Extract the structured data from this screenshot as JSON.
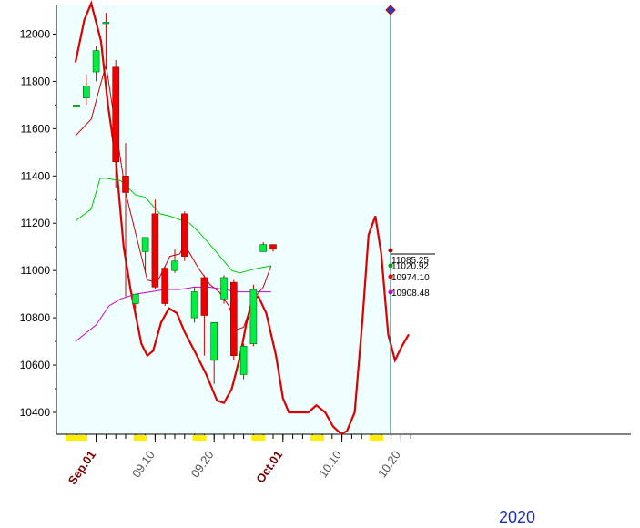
{
  "chart_data": {
    "type": "candlestick",
    "year_label": "2020",
    "yticks": [
      10400,
      10600,
      10800,
      11000,
      11200,
      11400,
      11600,
      11800,
      12000
    ],
    "ylim": [
      10300,
      12130
    ],
    "xticks": [
      {
        "label": "Sep.01",
        "i": 2,
        "month": true
      },
      {
        "label": "09.10",
        "i": 8,
        "month": false
      },
      {
        "label": "09.20",
        "i": 14,
        "month": false
      },
      {
        "label": "Oct.01",
        "i": 21,
        "month": true
      },
      {
        "label": "10.10",
        "i": 27,
        "month": false
      },
      {
        "label": "10.20",
        "i": 33,
        "month": false
      }
    ],
    "candles": [
      {
        "i": 0,
        "o": 11700,
        "h": 11700,
        "l": 11700,
        "c": 11700
      },
      {
        "i": 1,
        "o": 11730,
        "h": 11830,
        "l": 11700,
        "c": 11780
      },
      {
        "i": 2,
        "o": 11840,
        "h": 11950,
        "l": 11800,
        "c": 11930
      },
      {
        "i": 3,
        "o": 12050,
        "h": 12090,
        "l": 11850,
        "c": 12050
      },
      {
        "i": 4,
        "o": 11860,
        "h": 11890,
        "l": 11350,
        "c": 11460
      },
      {
        "i": 5,
        "o": 11400,
        "h": 11540,
        "l": 10890,
        "c": 11330
      },
      {
        "i": 6,
        "o": 10860,
        "h": 10900,
        "l": 10840,
        "c": 10900
      },
      {
        "i": 7,
        "o": 11080,
        "h": 11140,
        "l": 10990,
        "c": 11140
      },
      {
        "i": 8,
        "o": 11240,
        "h": 11300,
        "l": 10920,
        "c": 10930
      },
      {
        "i": 9,
        "o": 11010,
        "h": 11020,
        "l": 10850,
        "c": 10860
      },
      {
        "i": 10,
        "o": 11000,
        "h": 11090,
        "l": 10990,
        "c": 11040
      },
      {
        "i": 11,
        "o": 11240,
        "h": 11250,
        "l": 11040,
        "c": 11060
      },
      {
        "i": 12,
        "o": 10800,
        "h": 10930,
        "l": 10780,
        "c": 10910
      },
      {
        "i": 13,
        "o": 10970,
        "h": 10980,
        "l": 10640,
        "c": 10810
      },
      {
        "i": 14,
        "o": 10620,
        "h": 10780,
        "l": 10520,
        "c": 10780
      },
      {
        "i": 15,
        "o": 10880,
        "h": 10980,
        "l": 10860,
        "c": 10970
      },
      {
        "i": 16,
        "o": 10950,
        "h": 10960,
        "l": 10620,
        "c": 10640
      },
      {
        "i": 17,
        "o": 10560,
        "h": 10690,
        "l": 10540,
        "c": 10680
      },
      {
        "i": 18,
        "o": 10690,
        "h": 10940,
        "l": 10680,
        "c": 10920
      },
      {
        "i": 19,
        "o": 11080,
        "h": 11120,
        "l": 11080,
        "c": 11110
      },
      {
        "i": 20,
        "o": 11110,
        "h": 11110,
        "l": 11080,
        "c": 11090
      }
    ],
    "series": [
      {
        "color": "#dd0000",
        "width": 2.2,
        "points": [
          [
            -0.1,
            11880
          ],
          [
            0.8,
            12060
          ],
          [
            1.5,
            12130
          ],
          [
            2.5,
            11970
          ],
          [
            3.2,
            11700
          ],
          [
            4,
            11470
          ],
          [
            4.8,
            11100
          ],
          [
            5.5,
            10920
          ],
          [
            6.6,
            10690
          ],
          [
            7.2,
            10640
          ],
          [
            7.8,
            10660
          ],
          [
            8.6,
            10780
          ],
          [
            9.4,
            10840
          ],
          [
            10.2,
            10820
          ],
          [
            11,
            10740
          ],
          [
            12,
            10660
          ],
          [
            13.2,
            10560
          ],
          [
            14.3,
            10450
          ],
          [
            15,
            10440
          ],
          [
            15.8,
            10500
          ],
          [
            16.6,
            10630
          ],
          [
            17.3,
            10780
          ],
          [
            17.9,
            10880
          ],
          [
            18.5,
            10890
          ],
          [
            19.3,
            10820
          ],
          [
            20.3,
            10640
          ],
          [
            21,
            10460
          ],
          [
            21.6,
            10400
          ],
          [
            22.6,
            10400
          ],
          [
            23.6,
            10400
          ],
          [
            24.4,
            10430
          ],
          [
            25.3,
            10400
          ],
          [
            26.1,
            10340
          ],
          [
            26.9,
            10310
          ],
          [
            27.5,
            10320
          ],
          [
            28.3,
            10400
          ],
          [
            29.1,
            10800
          ],
          [
            29.7,
            11150
          ],
          [
            30.4,
            11230
          ],
          [
            31,
            11070
          ],
          [
            31.7,
            10730
          ],
          [
            32.4,
            10620
          ],
          [
            33.1,
            10680
          ],
          [
            33.8,
            10730
          ]
        ]
      },
      {
        "color": "#cc0000",
        "width": 1,
        "points": [
          [
            -0.1,
            11570
          ],
          [
            1.5,
            11640
          ],
          [
            2.4,
            11780
          ],
          [
            3,
            11870
          ],
          [
            4,
            11600
          ],
          [
            5,
            11330
          ],
          [
            6,
            11160
          ],
          [
            7.2,
            10960
          ],
          [
            8.2,
            10950
          ],
          [
            9.5,
            11060
          ],
          [
            10.5,
            11070
          ],
          [
            11,
            11110
          ],
          [
            12.4,
            11010
          ],
          [
            13.6,
            10940
          ],
          [
            14.5,
            10910
          ],
          [
            15.5,
            10850
          ],
          [
            16.3,
            10750
          ],
          [
            17,
            10760
          ],
          [
            18,
            10880
          ],
          [
            19,
            10930
          ],
          [
            19.8,
            11020
          ]
        ]
      },
      {
        "color": "#00cc00",
        "width": 1,
        "points": [
          [
            -0.1,
            11210
          ],
          [
            1.5,
            11260
          ],
          [
            2.4,
            11390
          ],
          [
            3,
            11390
          ],
          [
            4.5,
            11380
          ],
          [
            6,
            11320
          ],
          [
            7,
            11310
          ],
          [
            8.5,
            11240
          ],
          [
            9.5,
            11230
          ],
          [
            11.5,
            11200
          ],
          [
            12.5,
            11160
          ],
          [
            14,
            11090
          ],
          [
            15,
            11040
          ],
          [
            15.8,
            11000
          ],
          [
            16.6,
            10990
          ],
          [
            17.5,
            11000
          ],
          [
            18.5,
            11010
          ],
          [
            19.8,
            11020
          ]
        ]
      },
      {
        "color": "#cc00cc",
        "width": 1,
        "points": [
          [
            -0.1,
            10700
          ],
          [
            2,
            10770
          ],
          [
            3.3,
            10850
          ],
          [
            4.5,
            10880
          ],
          [
            6,
            10900
          ],
          [
            7.5,
            10910
          ],
          [
            9,
            10920
          ],
          [
            10.5,
            10920
          ],
          [
            12,
            10930
          ],
          [
            13.5,
            10930
          ],
          [
            15,
            10920
          ],
          [
            16.5,
            10910
          ],
          [
            18,
            10910
          ],
          [
            19.8,
            10910
          ]
        ]
      }
    ],
    "value_labels": [
      {
        "text": "11085.25",
        "value": 11085.25,
        "color": "#b00000"
      },
      {
        "text": "11020.92",
        "value": 11020.92,
        "color": "#00a000"
      },
      {
        "text": "10974.10",
        "value": 10974.1,
        "color": "#ee0000"
      },
      {
        "text": "10908.48",
        "value": 10908.48,
        "color": "#cc00cc"
      }
    ],
    "current_index": 20.2
  }
}
